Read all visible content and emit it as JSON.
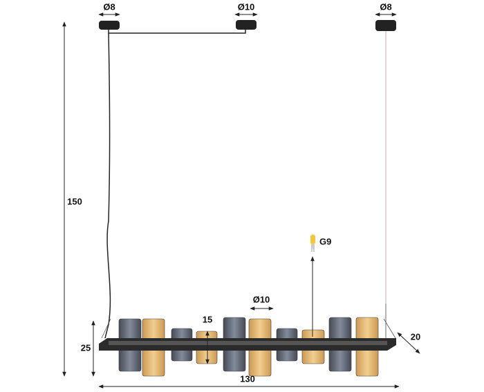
{
  "canopies": [
    {
      "label": "Ø8"
    },
    {
      "label": "Ø10"
    },
    {
      "label": "Ø8"
    }
  ],
  "dimensions": {
    "height": "150",
    "bar_height": "25",
    "shade_height": "15",
    "shade_diameter": "Ø10",
    "depth": "20",
    "length": "130"
  },
  "bulb": "G9"
}
